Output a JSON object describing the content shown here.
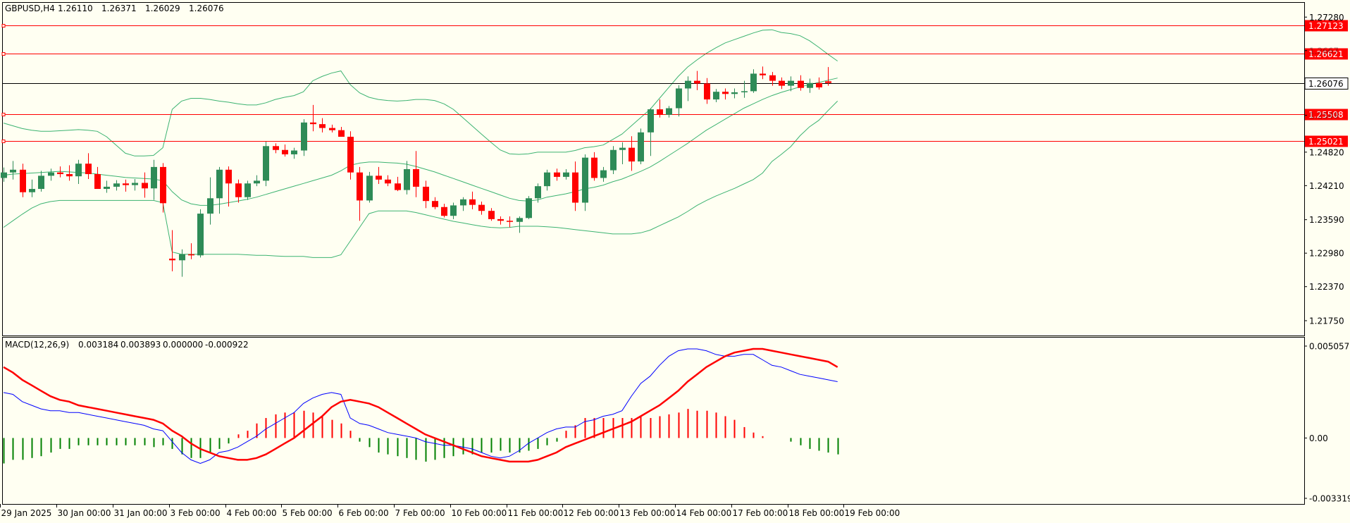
{
  "chart_data": {
    "type": "candlestick",
    "title": "GBPUSD,H4",
    "ohlc_readout": [
      "1.26110",
      "1.26371",
      "1.26029",
      "1.26076"
    ],
    "price_axis_ticks": [
      1.2728,
      1.2667,
      1.26076,
      1.2549,
      1.2482,
      1.2421,
      1.2359,
      1.2298,
      1.2237,
      1.2175
    ],
    "price_axis_tick_labels": [
      "1.27280",
      "1.2667",
      "1.2549",
      "1.24820",
      "1.24210",
      "1.23590",
      "1.22980",
      "1.22370",
      "1.21750"
    ],
    "ylim": [
      1.2148,
      1.2754
    ],
    "current_price": {
      "value": 1.26076,
      "label": "1.26076",
      "color": "#000000"
    },
    "horizontal_levels": [
      {
        "value": 1.27123,
        "label": "1.27123",
        "color": "#ff0000"
      },
      {
        "value": 1.26621,
        "label": "1.26621",
        "color": "#ff0000"
      },
      {
        "value": 1.25508,
        "label": "1.25508",
        "color": "#ff0000"
      },
      {
        "value": 1.25021,
        "label": "1.25021",
        "color": "#ff0000"
      }
    ],
    "up_color": "#2e8b57",
    "down_color": "#ff0000",
    "band_color": "#3cb371",
    "date_labels": [
      "29 Jan 2025",
      "30 Jan 00:00",
      "31 Jan 00:00",
      "3 Feb 00:00",
      "4 Feb 00:00",
      "5 Feb 00:00",
      "6 Feb 00:00",
      "7 Feb 00:00",
      "10 Feb 00:00",
      "11 Feb 00:00",
      "12 Feb 00:00",
      "13 Feb 00:00",
      "14 Feb 00:00",
      "17 Feb 00:00",
      "18 Feb 00:00",
      "19 Feb 00:00"
    ],
    "bars_per_day": 6,
    "candles": [
      [
        1.2435,
        1.2454,
        1.2428,
        1.2445
      ],
      [
        1.2445,
        1.2466,
        1.2432,
        1.245
      ],
      [
        1.245,
        1.2461,
        1.24,
        1.2409
      ],
      [
        1.2409,
        1.2432,
        1.24,
        1.2415
      ],
      [
        1.2415,
        1.2448,
        1.241,
        1.2439
      ],
      [
        1.2439,
        1.2452,
        1.243,
        1.2445
      ],
      [
        1.2445,
        1.2456,
        1.2436,
        1.2442
      ],
      [
        1.2442,
        1.2458,
        1.243,
        1.2438
      ],
      [
        1.2438,
        1.2468,
        1.2424,
        1.2461
      ],
      [
        1.2461,
        1.248,
        1.2433,
        1.2442
      ],
      [
        1.2442,
        1.2455,
        1.2416,
        1.2415
      ],
      [
        1.2415,
        1.243,
        1.2408,
        1.2419
      ],
      [
        1.2419,
        1.2431,
        1.2412,
        1.2425
      ],
      [
        1.2425,
        1.2432,
        1.241,
        1.2422
      ],
      [
        1.2422,
        1.2433,
        1.2412,
        1.2426
      ],
      [
        1.2426,
        1.2445,
        1.2399,
        1.2416
      ],
      [
        1.2416,
        1.2468,
        1.2395,
        1.2455
      ],
      [
        1.2455,
        1.2462,
        1.2372,
        1.2389
      ],
      [
        1.2288,
        1.234,
        1.2265,
        1.2285
      ],
      [
        1.2285,
        1.2305,
        1.2255,
        1.2296
      ],
      [
        1.2296,
        1.2316,
        1.2287,
        1.2294
      ],
      [
        1.2294,
        1.2378,
        1.229,
        1.237
      ],
      [
        1.237,
        1.2436,
        1.235,
        1.2398
      ],
      [
        1.2398,
        1.2455,
        1.237,
        1.245
      ],
      [
        1.245,
        1.2456,
        1.2383,
        1.2425
      ],
      [
        1.2425,
        1.2432,
        1.239,
        1.24
      ],
      [
        1.24,
        1.243,
        1.2395,
        1.2425
      ],
      [
        1.2425,
        1.244,
        1.242,
        1.243
      ],
      [
        1.243,
        1.2501,
        1.242,
        1.2493
      ],
      [
        1.2493,
        1.2498,
        1.248,
        1.2486
      ],
      [
        1.2486,
        1.2496,
        1.2474,
        1.2478
      ],
      [
        1.2478,
        1.249,
        1.247,
        1.2485
      ],
      [
        1.2485,
        1.2542,
        1.2475,
        1.2536
      ],
      [
        1.2536,
        1.2568,
        1.252,
        1.2533
      ],
      [
        1.2533,
        1.2544,
        1.2518,
        1.2526
      ],
      [
        1.2526,
        1.2532,
        1.2518,
        1.2522
      ],
      [
        1.2522,
        1.2528,
        1.251,
        1.251
      ],
      [
        1.251,
        1.252,
        1.2432,
        1.2445
      ],
      [
        1.2445,
        1.2455,
        1.2357,
        1.2394
      ],
      [
        1.2394,
        1.2446,
        1.239,
        1.2439
      ],
      [
        1.2439,
        1.2455,
        1.2424,
        1.2432
      ],
      [
        1.2432,
        1.244,
        1.242,
        1.2425
      ],
      [
        1.2425,
        1.2437,
        1.2411,
        1.2413
      ],
      [
        1.2413,
        1.2466,
        1.2405,
        1.2451
      ],
      [
        1.2451,
        1.2484,
        1.24,
        1.2419
      ],
      [
        1.2419,
        1.243,
        1.238,
        1.2393
      ],
      [
        1.2393,
        1.24,
        1.2378,
        1.2382
      ],
      [
        1.2382,
        1.2388,
        1.2363,
        1.2366
      ],
      [
        1.2366,
        1.239,
        1.236,
        1.2385
      ],
      [
        1.2385,
        1.24,
        1.2375,
        1.2396
      ],
      [
        1.2396,
        1.241,
        1.2378,
        1.2386
      ],
      [
        1.2386,
        1.2392,
        1.2368,
        1.2375
      ],
      [
        1.2375,
        1.238,
        1.2357,
        1.236
      ],
      [
        1.236,
        1.2365,
        1.235,
        1.2357
      ],
      [
        1.2357,
        1.2365,
        1.2345,
        1.2355
      ],
      [
        1.2355,
        1.2365,
        1.2335,
        1.2362
      ],
      [
        1.2362,
        1.2402,
        1.236,
        1.2398
      ],
      [
        1.2398,
        1.2425,
        1.239,
        1.242
      ],
      [
        1.242,
        1.245,
        1.2412,
        1.2445
      ],
      [
        1.2445,
        1.2452,
        1.243,
        1.2437
      ],
      [
        1.2437,
        1.2451,
        1.2432,
        1.2445
      ],
      [
        1.2445,
        1.2465,
        1.2375,
        1.239
      ],
      [
        1.239,
        1.2478,
        1.2375,
        1.2472
      ],
      [
        1.2472,
        1.2482,
        1.243,
        1.2435
      ],
      [
        1.2435,
        1.2455,
        1.2428,
        1.2449
      ],
      [
        1.2449,
        1.2493,
        1.2442,
        1.2486
      ],
      [
        1.2486,
        1.25,
        1.246,
        1.249
      ],
      [
        1.249,
        1.2511,
        1.2448,
        1.2465
      ],
      [
        1.2465,
        1.2525,
        1.246,
        1.2518
      ],
      [
        1.2518,
        1.2562,
        1.2475,
        1.256
      ],
      [
        1.256,
        1.2578,
        1.2545,
        1.255
      ],
      [
        1.255,
        1.2566,
        1.2545,
        1.2562
      ],
      [
        1.2562,
        1.2604,
        1.2547,
        1.2598
      ],
      [
        1.2598,
        1.262,
        1.2575,
        1.2612
      ],
      [
        1.2612,
        1.263,
        1.2595,
        1.2607
      ],
      [
        1.2607,
        1.2617,
        1.257,
        1.2578
      ],
      [
        1.2578,
        1.2597,
        1.2573,
        1.2592
      ],
      [
        1.2592,
        1.2598,
        1.2578,
        1.2588
      ],
      [
        1.2588,
        1.2598,
        1.258,
        1.2591
      ],
      [
        1.2591,
        1.2612,
        1.2581,
        1.2593
      ],
      [
        1.2593,
        1.2633,
        1.259,
        1.2625
      ],
      [
        1.2625,
        1.2638,
        1.2615,
        1.2622
      ],
      [
        1.2622,
        1.2628,
        1.2603,
        1.2612
      ],
      [
        1.2612,
        1.2618,
        1.2597,
        1.2603
      ],
      [
        1.2603,
        1.262,
        1.2593,
        1.2612
      ],
      [
        1.2612,
        1.2622,
        1.2594,
        1.2599
      ],
      [
        1.2599,
        1.2616,
        1.259,
        1.2608
      ],
      [
        1.2608,
        1.2618,
        1.2596,
        1.26
      ],
      [
        1.2611,
        1.2637,
        1.2603,
        1.2608
      ]
    ],
    "bollinger": {
      "upper": [
        1.2535,
        1.253,
        1.2525,
        1.2522,
        1.252,
        1.252,
        1.2521,
        1.2522,
        1.2523,
        1.2522,
        1.252,
        1.251,
        1.2495,
        1.248,
        1.2475,
        1.2475,
        1.2476,
        1.249,
        1.256,
        1.2575,
        1.258,
        1.258,
        1.2578,
        1.2575,
        1.2573,
        1.257,
        1.2568,
        1.2568,
        1.2572,
        1.2578,
        1.2582,
        1.2585,
        1.2592,
        1.2612,
        1.262,
        1.2626,
        1.263,
        1.2605,
        1.259,
        1.2582,
        1.2578,
        1.2576,
        1.2575,
        1.2576,
        1.2578,
        1.2578,
        1.2576,
        1.257,
        1.256,
        1.2545,
        1.253,
        1.2515,
        1.25,
        1.2486,
        1.2479,
        1.2478,
        1.2479,
        1.2482,
        1.2482,
        1.2482,
        1.2482,
        1.2485,
        1.249,
        1.2492,
        1.2495,
        1.2505,
        1.2515,
        1.253,
        1.2545,
        1.256,
        1.258,
        1.26,
        1.262,
        1.2637,
        1.265,
        1.2662,
        1.2672,
        1.2681,
        1.2687,
        1.2693,
        1.2699,
        1.2704,
        1.2705,
        1.27,
        1.2698,
        1.2694,
        1.2685,
        1.2673,
        1.266,
        1.2648
      ],
      "middle": [
        1.244,
        1.2442,
        1.2443,
        1.2444,
        1.2445,
        1.2446,
        1.2447,
        1.2446,
        1.2445,
        1.2444,
        1.2442,
        1.244,
        1.2438,
        1.2436,
        1.2435,
        1.2434,
        1.2433,
        1.243,
        1.241,
        1.2395,
        1.2388,
        1.2385,
        1.2385,
        1.2387,
        1.239,
        1.2393,
        1.2396,
        1.24,
        1.2405,
        1.241,
        1.2415,
        1.242,
        1.2425,
        1.243,
        1.2435,
        1.244,
        1.2448,
        1.2458,
        1.2462,
        1.2464,
        1.2464,
        1.2463,
        1.2462,
        1.246,
        1.2456,
        1.2451,
        1.2446,
        1.244,
        1.2434,
        1.2428,
        1.2422,
        1.2416,
        1.241,
        1.2404,
        1.2398,
        1.2394,
        1.2393,
        1.2395,
        1.24,
        1.2403,
        1.2406,
        1.241,
        1.2415,
        1.2418,
        1.2422,
        1.2428,
        1.2433,
        1.244,
        1.2447,
        1.2455,
        1.2465,
        1.2476,
        1.2487,
        1.2498,
        1.251,
        1.2522,
        1.2532,
        1.2542,
        1.2552,
        1.2562,
        1.257,
        1.2578,
        1.2585,
        1.2591,
        1.2596,
        1.2601,
        1.2605,
        1.2609,
        1.2613,
        1.2617
      ],
      "lower": [
        1.2345,
        1.2357,
        1.2369,
        1.238,
        1.2388,
        1.2392,
        1.2394,
        1.2394,
        1.2394,
        1.2394,
        1.2394,
        1.2394,
        1.2394,
        1.2394,
        1.2394,
        1.2394,
        1.2394,
        1.239,
        1.23,
        1.2296,
        1.2296,
        1.2296,
        1.2296,
        1.2296,
        1.2296,
        1.2296,
        1.2295,
        1.2294,
        1.2294,
        1.2293,
        1.2292,
        1.2292,
        1.2292,
        1.229,
        1.229,
        1.229,
        1.2295,
        1.232,
        1.2345,
        1.237,
        1.2375,
        1.2375,
        1.2375,
        1.2375,
        1.2372,
        1.2368,
        1.2364,
        1.236,
        1.2356,
        1.2353,
        1.235,
        1.2347,
        1.2345,
        1.2344,
        1.2345,
        1.2347,
        1.2347,
        1.2347,
        1.2346,
        1.2345,
        1.2343,
        1.2341,
        1.2339,
        1.2337,
        1.2335,
        1.2333,
        1.2333,
        1.2333,
        1.2335,
        1.234,
        1.2348,
        1.2356,
        1.2364,
        1.2374,
        1.2385,
        1.2394,
        1.2402,
        1.2409,
        1.2416,
        1.2424,
        1.2432,
        1.2444,
        1.2465,
        1.2478,
        1.2492,
        1.2512,
        1.2528,
        1.254,
        1.2558,
        1.2575
      ]
    },
    "macd": {
      "label": "MACD(12,26,9)",
      "values_readout": [
        "0.003184",
        "0.003893",
        "0.000000",
        "-0.000922"
      ],
      "ylim": [
        -0.003319,
        0.005057
      ],
      "tick_labels": [
        "0.005057",
        "0.00",
        "-0.003319"
      ],
      "tick_values": [
        0.005057,
        0.0,
        -0.003319
      ],
      "macd_color": "#0000ff",
      "signal_color": "#ff0000",
      "hist_up_color": "#ff0000",
      "hist_down_color": "#008000",
      "macd_line": [
        0.0025,
        0.0024,
        0.002,
        0.0018,
        0.0016,
        0.0015,
        0.0015,
        0.0014,
        0.0014,
        0.0013,
        0.0012,
        0.0011,
        0.001,
        0.0009,
        0.0008,
        0.0007,
        0.0005,
        0.0004,
        -0.0002,
        -0.0008,
        -0.0012,
        -0.0014,
        -0.0012,
        -0.0008,
        -0.0007,
        -0.0005,
        -0.0002,
        0.0001,
        0.0005,
        0.0008,
        0.0011,
        0.0014,
        0.0019,
        0.0022,
        0.0024,
        0.0025,
        0.0024,
        0.0011,
        0.0008,
        0.0007,
        0.0005,
        0.0003,
        0.0002,
        0.0001,
        0.0,
        -0.0002,
        -0.0003,
        -0.0004,
        -0.0004,
        -0.0005,
        -0.0006,
        -0.0008,
        -0.001,
        -0.0011,
        -0.001,
        -0.0007,
        -0.0003,
        0.0,
        0.0003,
        0.0005,
        0.0006,
        0.0006,
        0.0009,
        0.001,
        0.0012,
        0.0013,
        0.0015,
        0.0023,
        0.003,
        0.0034,
        0.004,
        0.0045,
        0.0048,
        0.0049,
        0.0049,
        0.0048,
        0.0046,
        0.0045,
        0.0045,
        0.0046,
        0.0046,
        0.0043,
        0.004,
        0.0039,
        0.0037,
        0.0035,
        0.0034,
        0.0033,
        0.0032,
        0.0031
      ],
      "signal_line": [
        0.0039,
        0.0036,
        0.0032,
        0.0029,
        0.0026,
        0.0023,
        0.0021,
        0.002,
        0.0018,
        0.0017,
        0.0016,
        0.0015,
        0.0014,
        0.0013,
        0.0012,
        0.0011,
        0.001,
        0.0008,
        0.0004,
        0.0001,
        -0.0003,
        -0.0006,
        -0.0008,
        -0.001,
        -0.0011,
        -0.0012,
        -0.0012,
        -0.0011,
        -0.0009,
        -0.0006,
        -0.0003,
        0.0,
        0.0004,
        0.0008,
        0.0012,
        0.0017,
        0.002,
        0.0021,
        0.002,
        0.0019,
        0.0017,
        0.0014,
        0.0011,
        0.0008,
        0.0005,
        0.0002,
        0.0,
        -0.0002,
        -0.0004,
        -0.0006,
        -0.0008,
        -0.001,
        -0.0011,
        -0.0012,
        -0.0013,
        -0.0013,
        -0.0013,
        -0.0012,
        -0.001,
        -0.0008,
        -0.0005,
        -0.0003,
        -0.0001,
        0.0001,
        0.0003,
        0.0005,
        0.0007,
        0.0009,
        0.0012,
        0.0015,
        0.0018,
        0.0022,
        0.0026,
        0.0031,
        0.0035,
        0.0039,
        0.0042,
        0.0045,
        0.0047,
        0.0048,
        0.0049,
        0.0049,
        0.0048,
        0.0047,
        0.0046,
        0.0045,
        0.0044,
        0.0043,
        0.0042,
        0.0039
      ],
      "histogram": [
        -0.0014,
        -0.0012,
        -0.0012,
        -0.0011,
        -0.001,
        -0.0008,
        -0.0006,
        -0.0006,
        -0.0004,
        -0.0004,
        -0.0004,
        -0.0004,
        -0.0004,
        -0.0004,
        -0.0004,
        -0.0004,
        -0.0005,
        -0.0004,
        -0.0006,
        -0.0009,
        -0.0011,
        -0.0011,
        -0.0008,
        -0.0006,
        -0.0003,
        0.0002,
        0.0004,
        0.0008,
        0.0011,
        0.0013,
        0.0014,
        0.0014,
        0.0015,
        0.0014,
        0.0012,
        0.001,
        0.0008,
        0.0004,
        -0.0002,
        -0.0005,
        -0.0008,
        -0.0009,
        -0.001,
        -0.0011,
        -0.0012,
        -0.0013,
        -0.0012,
        -0.0011,
        -0.001,
        -0.0009,
        -0.0009,
        -0.0008,
        -0.0008,
        -0.0007,
        -0.0008,
        -0.0008,
        -0.0007,
        -0.0006,
        -0.0004,
        -0.0002,
        0.0004,
        0.0007,
        0.0011,
        0.0011,
        0.0011,
        0.0011,
        0.0011,
        0.0011,
        0.0012,
        0.0011,
        0.0012,
        0.0013,
        0.0014,
        0.0016,
        0.0015,
        0.0015,
        0.0014,
        0.0012,
        0.001,
        0.0006,
        0.0003,
        0.0001,
        0.0,
        0.0,
        -0.0002,
        -0.0004,
        -0.0006,
        -0.0007,
        -0.0008,
        -0.0009
      ]
    }
  }
}
